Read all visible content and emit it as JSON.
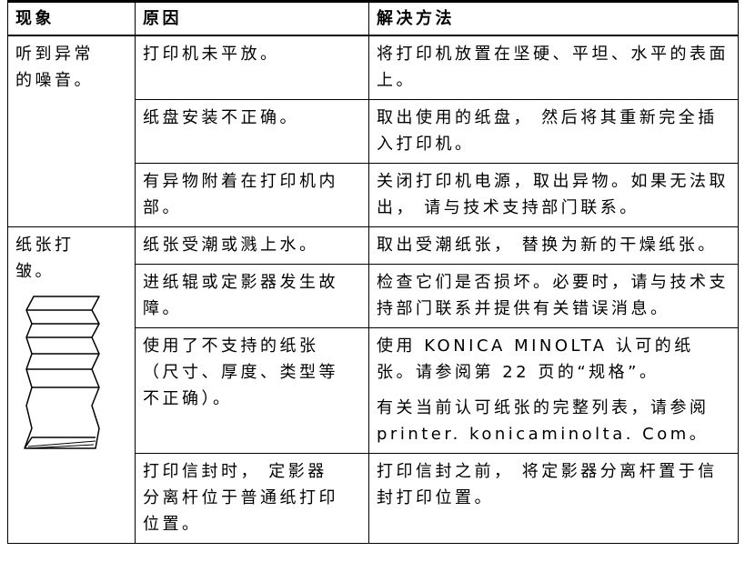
{
  "table": {
    "header": [
      "现象",
      "原因",
      "解决方法"
    ],
    "groups": [
      {
        "symptom": "听到异常的噪音。",
        "rows": [
          {
            "cause": "打印机未平放。",
            "solution": [
              "将打印机放置在坚硬、平坦、水平的表面上。"
            ]
          },
          {
            "cause": "纸盘安装不正确。",
            "solution": [
              "取出使用的纸盘， 然后将其重新完全插入打印机。"
            ]
          },
          {
            "cause": "有异物附着在打印机内部。",
            "solution": [
              "关闭打印机电源，取出异物。如果无法取出， 请与技术支持部门联系。"
            ]
          }
        ]
      },
      {
        "symptom": "纸张打皱。",
        "rows": [
          {
            "cause": "纸张受潮或溅上水。",
            "solution": [
              "取出受潮纸张， 替换为新的干燥纸张。"
            ]
          },
          {
            "cause": "进纸辊或定影器发生故障。",
            "solution": [
              "检查它们是否损坏。必要时，请与技术支持部门联系并提供有关错误消息。"
            ]
          },
          {
            "cause": "使用了不支持的纸张（尺寸、厚度、类型等不正确）。",
            "solution": [
              "使用 KONICA MINOLTA 认可的纸张。请参阅第 22 页的“规格”。",
              "有关当前认可纸张的完整列表，请参阅 printer. konicaminolta. Com。"
            ]
          },
          {
            "cause": "打印信封时， 定影器分离杆位于普通纸打印位置。",
            "solution": [
              "打印信封之前， 将定影器分离杆置于信封打印位置。"
            ]
          }
        ]
      }
    ]
  }
}
